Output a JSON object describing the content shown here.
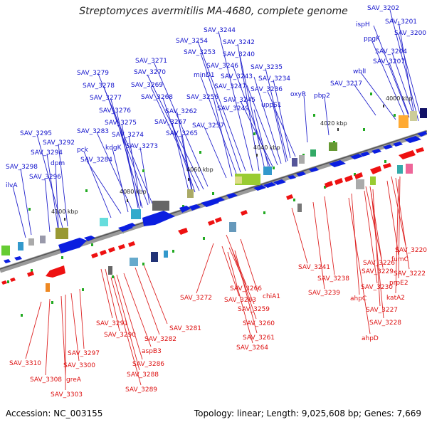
{
  "title": "Streptomyces avermitilis MA-4680, complete genome",
  "footer": {
    "accession": "Accession: NC_003155",
    "summary": "Topology: linear; Length: 9,025,608 bp; Genes: 7,669"
  },
  "colors": {
    "forward": "#0000dd",
    "reverse": "#ee1111",
    "backbone": "#808080"
  },
  "scale_labels": [
    "4000 kbp",
    "4020 kbp",
    "4040 kbp",
    "4060 kbp",
    "4080 kbp",
    "4100 kbp"
  ],
  "top_labels": [
    "SAV_3202",
    "SAV_3201",
    "ispH",
    "SAV_3200",
    "ppgK",
    "SAV_3244",
    "SAV_3254",
    "SAV_3242",
    "SAV_3253",
    "SAV_3240",
    "SAV_3204",
    "SAV_3207",
    "SAV_3271",
    "SAV_3246",
    "SAV_3235",
    "minD1",
    "SAV_3243",
    "SAV_3279",
    "SAV_3270",
    "SAV_3234",
    "wblI",
    "SAV_3278",
    "SAV_3247",
    "SAV_3269",
    "SAV_3236",
    "SAV_3217",
    "SAV_3277",
    "SAV_3268",
    "SAV_3256",
    "SAV_3245",
    "oxyR",
    "pbp2",
    "SAV_3276",
    "SAV_3262",
    "SAV_3249",
    "uppS1",
    "SAV_3275",
    "SAV_3267",
    "SAV_3295",
    "SAV_3283",
    "SAV_3274",
    "SAV_3265",
    "SAV_3257",
    "SAV_3292",
    "pck",
    "SAV_3294",
    "kdgK",
    "SAV_3273",
    "dpm",
    "SAV_3284",
    "SAV_3298",
    "SAV_3296",
    "ilvA"
  ],
  "bottom_labels": [
    "SAV_3220",
    "fumC",
    "SAV_3226",
    "SAV_3222",
    "SAV_3229",
    "prpE2",
    "SAV_3241",
    "SAV_3238",
    "SAV_3230",
    "katA2",
    "SAV_3239",
    "ahpC",
    "SAV_3227",
    "SAV_3266",
    "chiA1",
    "SAV_3272",
    "SAV_3263",
    "SAV_3228",
    "SAV_3259",
    "ahpD",
    "SAV_3291",
    "SAV_3281",
    "SAV_3260",
    "SAV_3290",
    "SAV_3282",
    "SAV_3261",
    "SAV_3264",
    "aspB3",
    "SAV_3297",
    "SAV_3310",
    "SAV_3286",
    "SAV_3300",
    "SAV_3288",
    "SAV_3308",
    "greA",
    "SAV_3289",
    "SAV_3303"
  ]
}
